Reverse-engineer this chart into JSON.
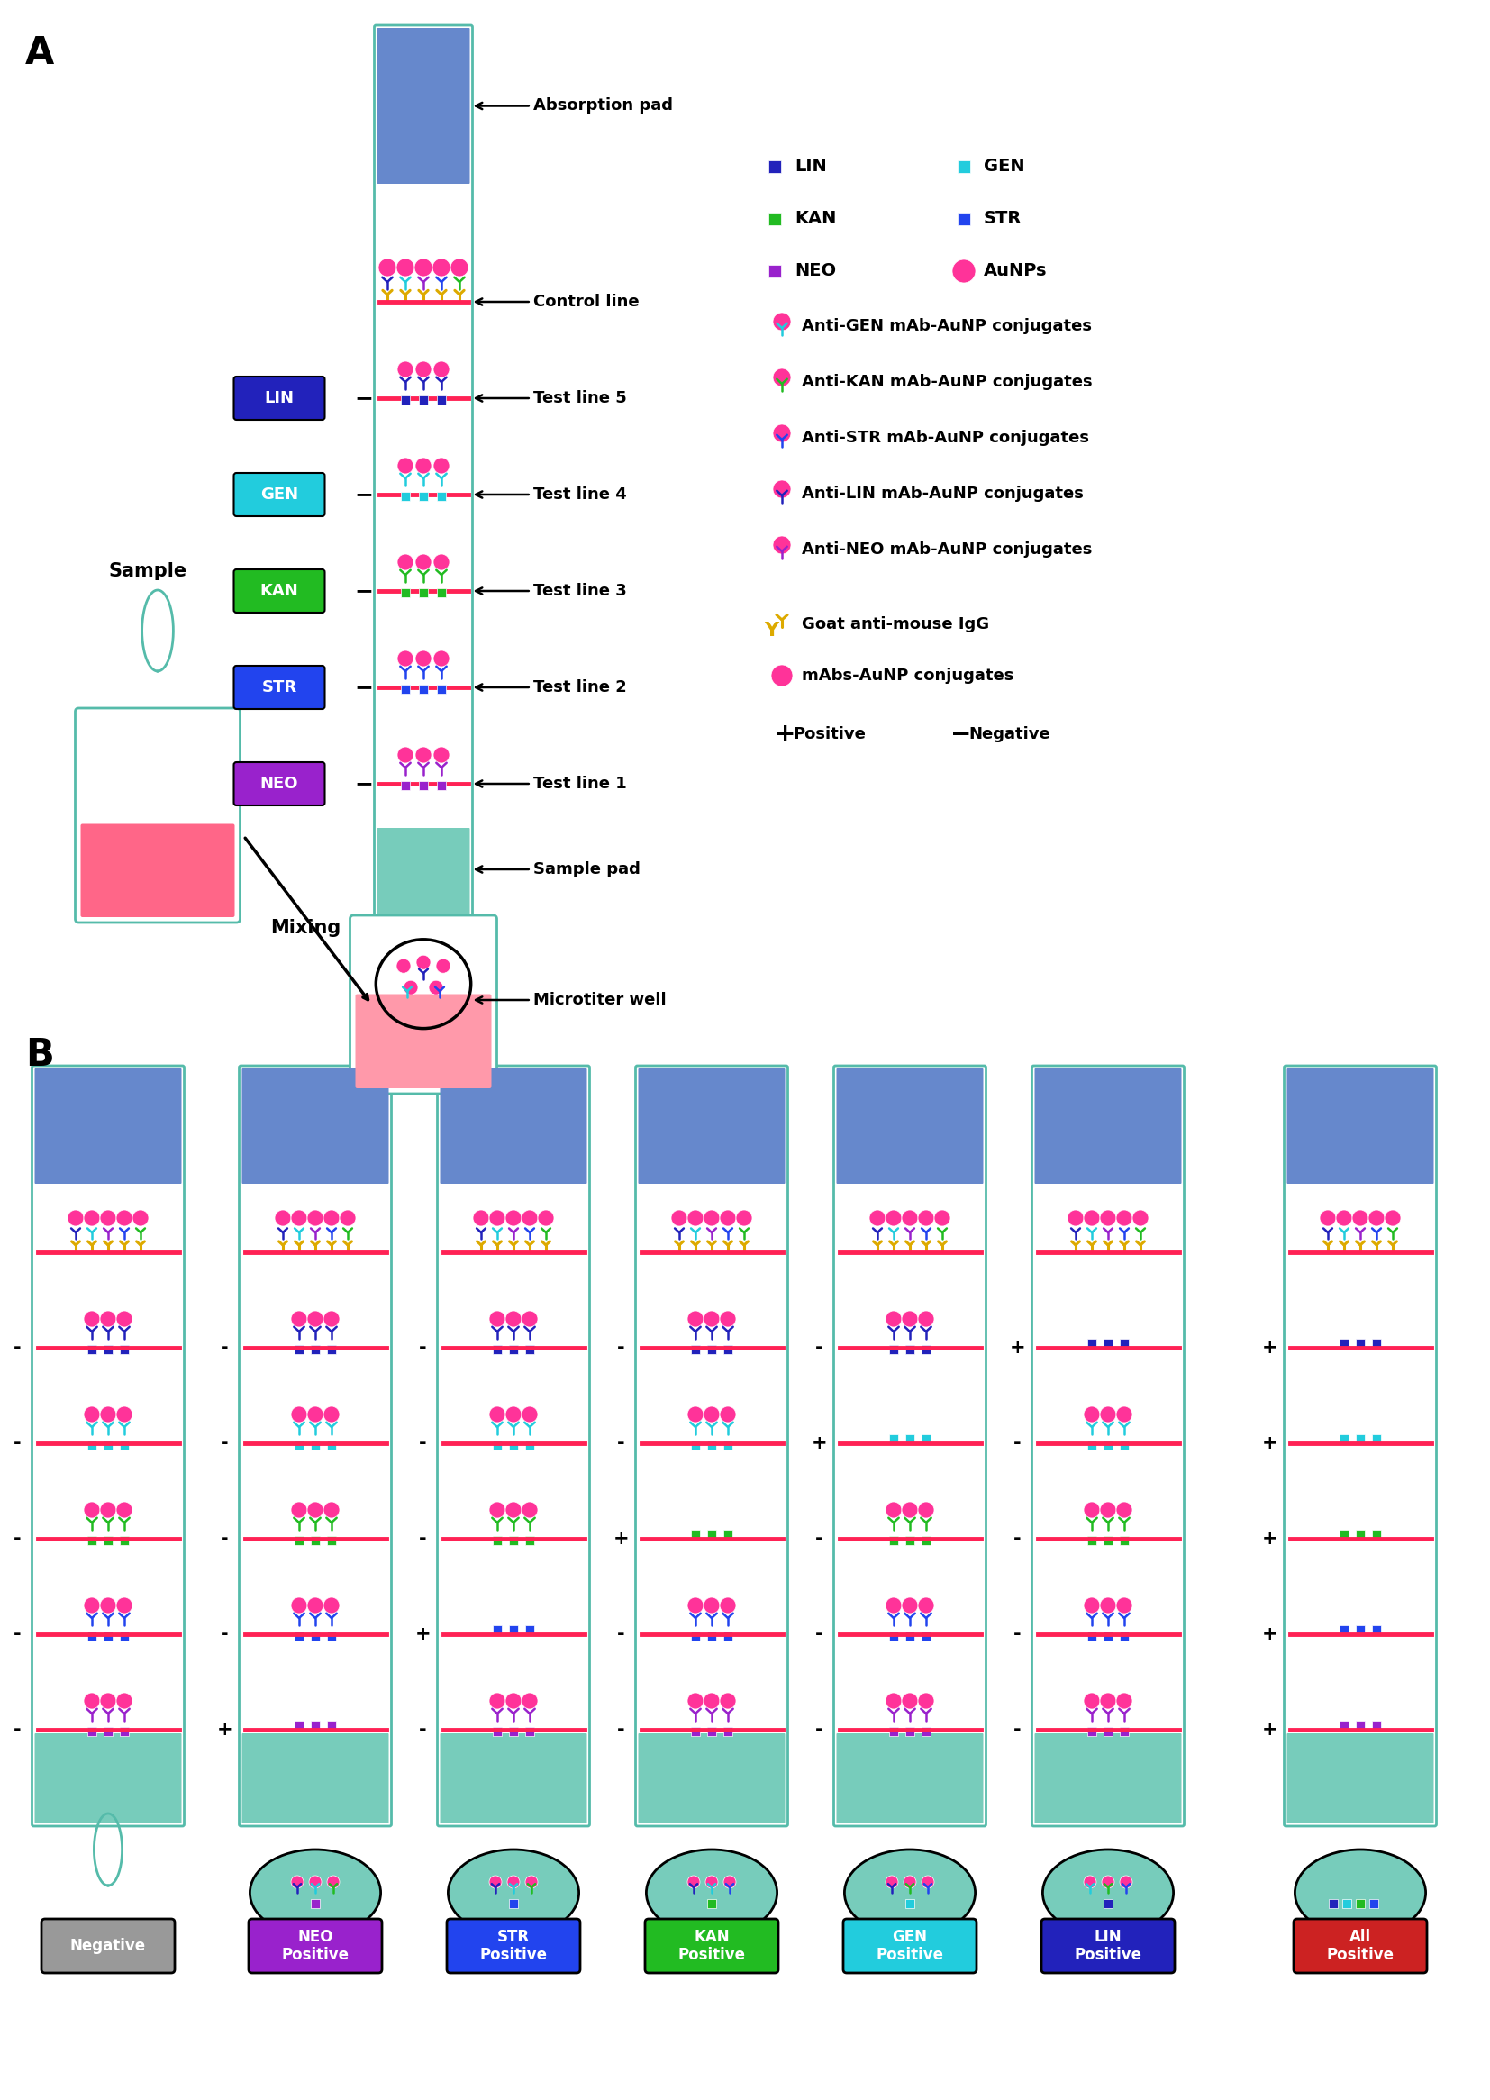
{
  "panel_A_label": "A",
  "panel_B_label": "B",
  "absorption_pad_color": "#6688cc",
  "strip_border_color": "#55bbaa",
  "sample_pad_color": "#77ccbb",
  "control_line_color": "#ff2255",
  "aunp_color": "#ff3399",
  "lin_color": "#2222bb",
  "gen_color": "#22ccdd",
  "kan_color": "#22bb22",
  "str_color": "#2244ee",
  "neo_color": "#9922cc",
  "goat_igg_color": "#ddaa00",
  "cup_border_color": "#55bbaa",
  "liquid_color": "#ff6688",
  "well_liquid_color": "#ff99aa",
  "box_colors": [
    "#2222bb",
    "#22ccdd",
    "#22bb22",
    "#2244ee",
    "#9922cc"
  ],
  "box_labels": [
    "LIN",
    "GEN",
    "KAN",
    "STR",
    "NEO"
  ],
  "bottom_labels": [
    "Negative",
    "NEO\nPositive",
    "STR\nPositive",
    "KAN\nPositive",
    "GEN\nPositive",
    "LIN\nPositive",
    "All\nPositive"
  ],
  "bottom_label_colors": [
    "#999999",
    "#9922cc",
    "#2244ee",
    "#22bb22",
    "#22ccdd",
    "#2222bb",
    "#cc2222"
  ],
  "b_strip_cxs": [
    120,
    350,
    570,
    790,
    1010,
    1230,
    1510
  ],
  "ab_colors": [
    "#2222bb",
    "#22ccdd",
    "#22bb22",
    "#2244ee",
    "#9922cc"
  ],
  "absent_sets": [
    [],
    [
      4
    ],
    [
      3
    ],
    [
      2
    ],
    [
      1
    ],
    [
      0
    ],
    [
      0,
      1,
      2,
      3,
      4
    ]
  ],
  "signs_matrix": [
    [
      "-",
      "-",
      "-",
      "-",
      "-"
    ],
    [
      "-",
      "-",
      "-",
      "-",
      "+"
    ],
    [
      "-",
      "-",
      "-",
      "+",
      "-"
    ],
    [
      "-",
      "-",
      "+",
      "-",
      "-"
    ],
    [
      "-",
      "+",
      "-",
      "-",
      "-"
    ],
    [
      "+",
      "-",
      "-",
      "-",
      "-"
    ],
    [
      "+",
      "+",
      "+",
      "+",
      "+"
    ]
  ]
}
